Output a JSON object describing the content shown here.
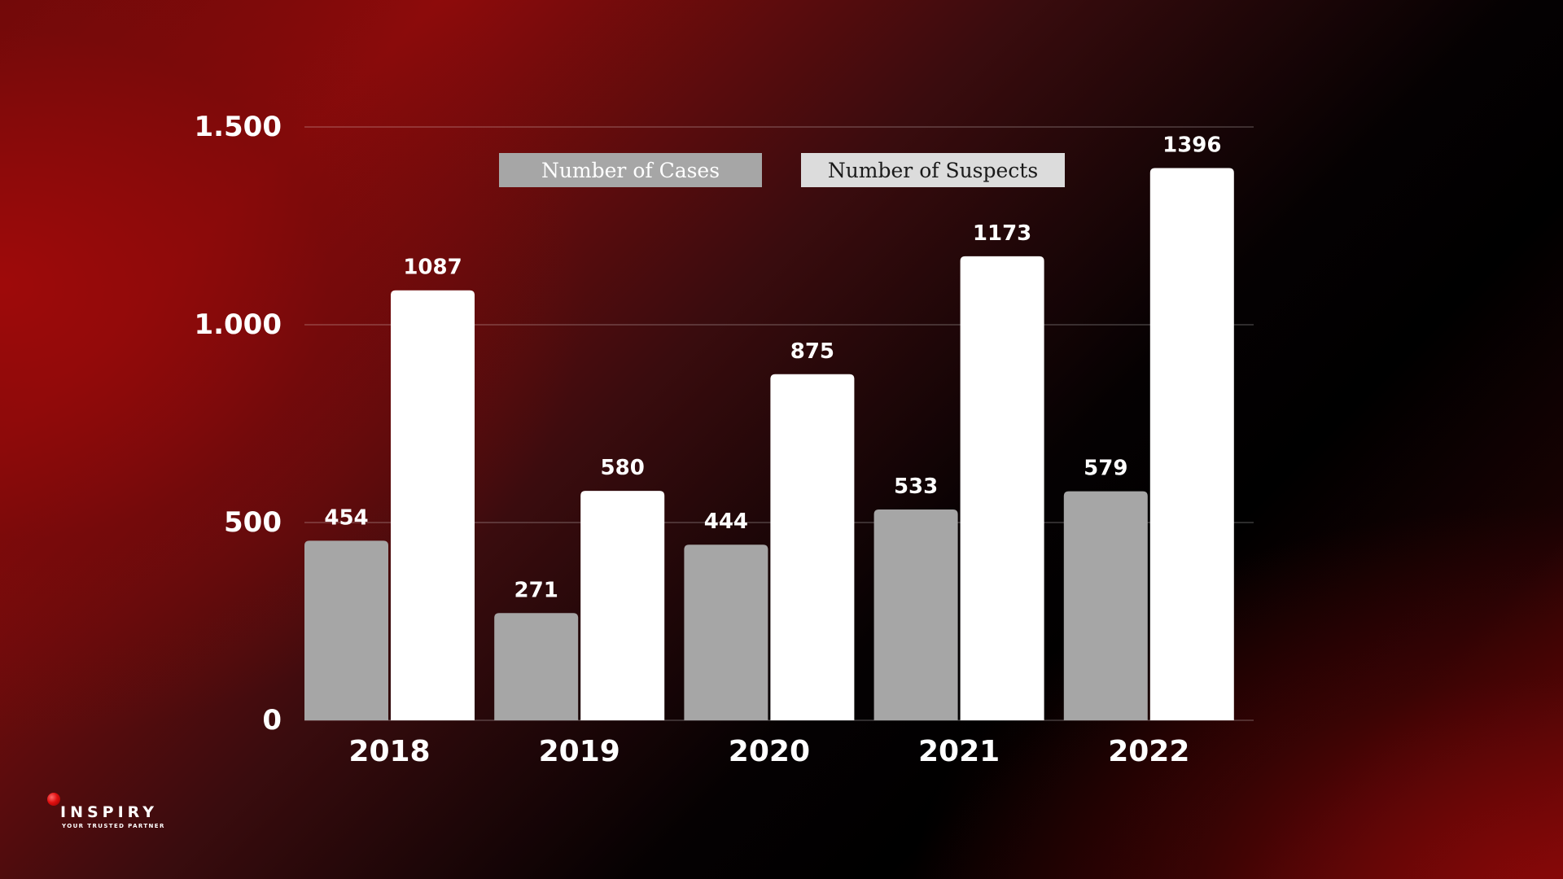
{
  "chart_data": {
    "type": "bar",
    "categories": [
      "2018",
      "2019",
      "2020",
      "2021",
      "2022"
    ],
    "series": [
      {
        "name": "Number of Cases",
        "values": [
          454,
          271,
          444,
          533,
          579
        ],
        "color": "#a6a6a6"
      },
      {
        "name": "Number of Suspects",
        "values": [
          1087,
          580,
          875,
          1173,
          1396
        ],
        "color": "#ffffff"
      }
    ],
    "ylim": [
      0,
      1500
    ],
    "yticks": [
      0,
      500,
      1000,
      1500
    ],
    "ytick_labels": [
      "0",
      "500",
      "1.000",
      "1.500"
    ],
    "grid": true,
    "legend_position": "top-center",
    "data_labels": true
  },
  "legend": {
    "cases_label": "Number of Cases",
    "suspects_label": "Number of Suspects"
  },
  "logo": {
    "name": "INSPIRY",
    "tagline": "YOUR TRUSTED PARTNER"
  },
  "colors": {
    "cases": "#a6a6a6",
    "suspects": "#ffffff",
    "accent": "#e01010"
  }
}
